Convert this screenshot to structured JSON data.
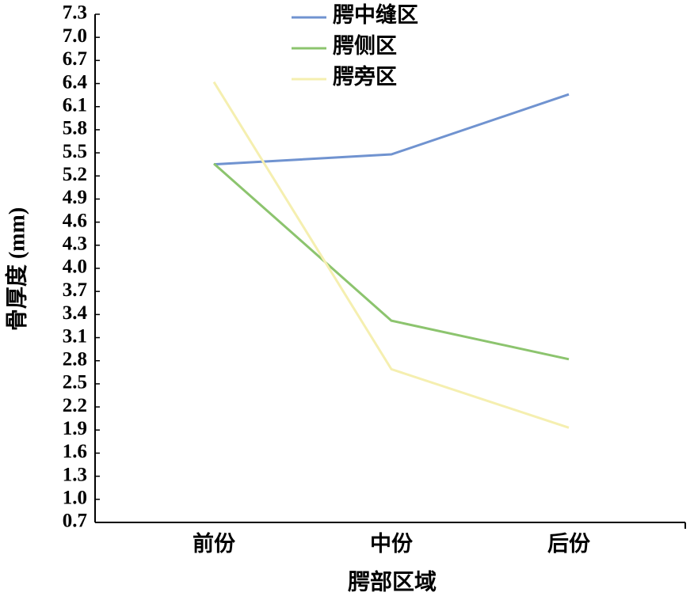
{
  "chart_data": {
    "type": "line",
    "x_label": "腭部区域",
    "y_label": "骨厚度 (mm)",
    "categories": [
      "前份",
      "中份",
      "后份"
    ],
    "series": [
      {
        "name": "腭中缝区",
        "color": "#7093d0",
        "values": [
          5.35,
          5.48,
          6.26
        ]
      },
      {
        "name": "腭侧区",
        "color": "#8cc46e",
        "values": [
          5.36,
          3.32,
          2.82
        ]
      },
      {
        "name": "腭旁区",
        "color": "#f5efb0",
        "values": [
          6.42,
          2.69,
          1.93
        ]
      }
    ],
    "ylim": [
      0.7,
      7.3
    ],
    "yticks": [
      0.7,
      {
        "value": 1.0,
        "label": "1.0"
      },
      1.3,
      1.6,
      1.9,
      2.2,
      2.5,
      2.8,
      3.1,
      3.4,
      3.7,
      {
        "value": 4.0,
        "label": "4.0"
      },
      4.3,
      4.6,
      4.9,
      5.2,
      5.5,
      5.8,
      6.1,
      6.4,
      6.7,
      {
        "value": 7.0,
        "label": "7.0"
      },
      7.3
    ]
  }
}
